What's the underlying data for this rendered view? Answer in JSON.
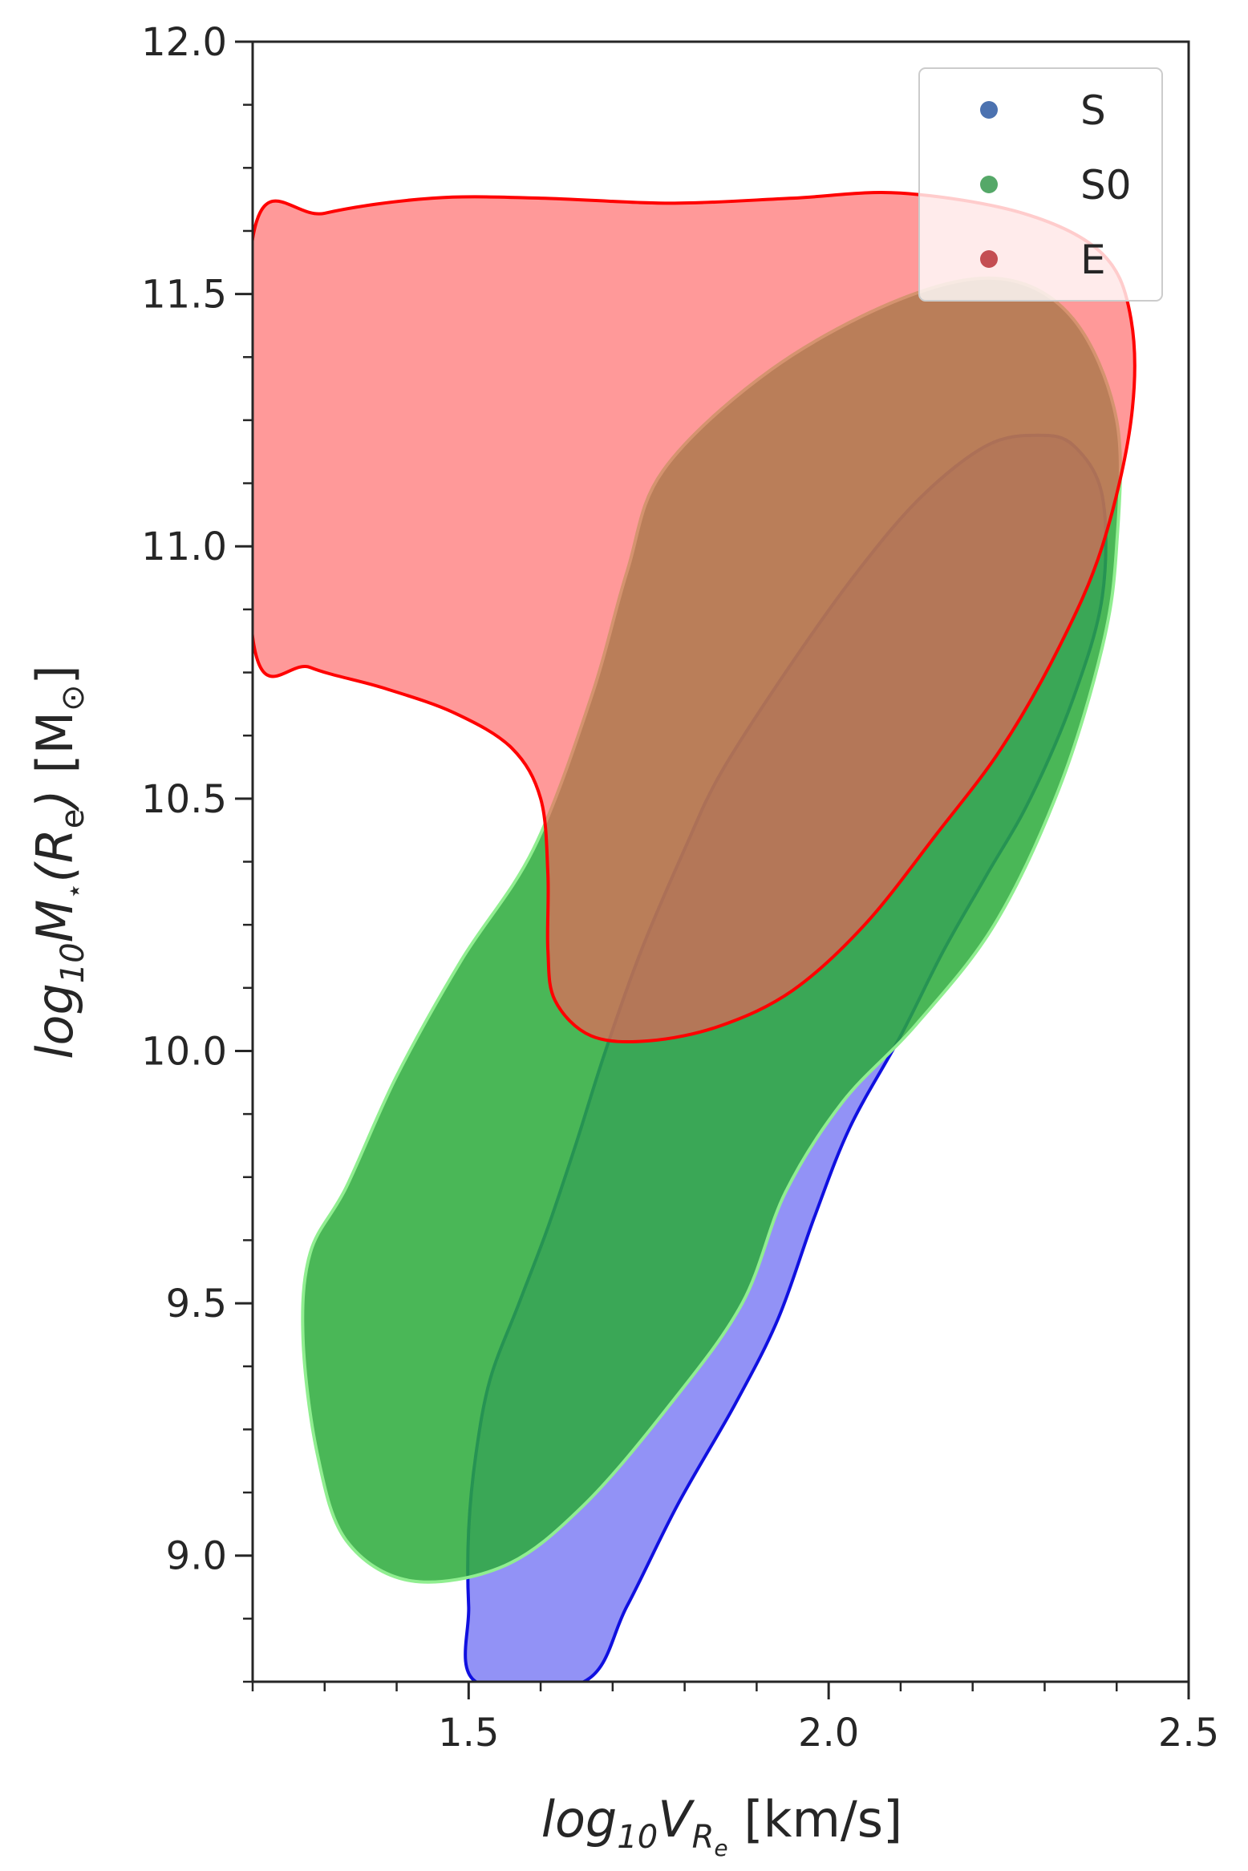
{
  "chart_data": {
    "type": "contour",
    "xlabel": {
      "main": "log",
      "sub": "10",
      "var": "V",
      "varsub": "R",
      "varsubsub": "e",
      "unit": " [km/s]"
    },
    "ylabel": {
      "main": "log",
      "sub": "10",
      "var": "M",
      "star": "⋆",
      "open": "(",
      "inner": "R",
      "innersub": "e",
      "close": ")",
      "unit": " [M",
      "unitsub": "⊙",
      "unitclose": "]"
    },
    "xlim": [
      1.2,
      2.5
    ],
    "ylim": [
      8.75,
      12.0
    ],
    "x_ticks": [
      1.5,
      2.0,
      2.5
    ],
    "x_tick_labels": [
      "1.5",
      "2.0",
      "2.5"
    ],
    "y_ticks": [
      9.0,
      9.5,
      10.0,
      10.5,
      11.0,
      11.5,
      12.0
    ],
    "y_tick_labels": [
      "9.0",
      "9.5",
      "10.0",
      "10.5",
      "11.0",
      "11.5",
      "12.0"
    ],
    "grid": false,
    "legend_position": "top-right",
    "series": [
      {
        "name": "S",
        "marker_color": "#4c72b0",
        "fill": "#7f7ff5",
        "edge": "#1010e0",
        "contour": [
          [
            1.51,
            8.75
          ],
          [
            1.5,
            8.9
          ],
          [
            1.5,
            9.05
          ],
          [
            1.51,
            9.2
          ],
          [
            1.53,
            9.35
          ],
          [
            1.57,
            9.5
          ],
          [
            1.61,
            9.65
          ],
          [
            1.65,
            9.82
          ],
          [
            1.69,
            10.0
          ],
          [
            1.74,
            10.2
          ],
          [
            1.8,
            10.4
          ],
          [
            1.85,
            10.55
          ],
          [
            1.94,
            10.75
          ],
          [
            2.04,
            10.95
          ],
          [
            2.13,
            11.1
          ],
          [
            2.22,
            11.2
          ],
          [
            2.29,
            11.22
          ],
          [
            2.34,
            11.2
          ],
          [
            2.38,
            11.1
          ],
          [
            2.38,
            10.9
          ],
          [
            2.34,
            10.7
          ],
          [
            2.28,
            10.5
          ],
          [
            2.22,
            10.35
          ],
          [
            2.16,
            10.2
          ],
          [
            2.1,
            10.03
          ],
          [
            2.03,
            9.85
          ],
          [
            1.98,
            9.67
          ],
          [
            1.93,
            9.47
          ],
          [
            1.87,
            9.3
          ],
          [
            1.79,
            9.1
          ],
          [
            1.72,
            8.9
          ],
          [
            1.66,
            8.75
          ]
        ]
      },
      {
        "name": "S0",
        "marker_color": "#55a868",
        "fill": "#2aaa3a",
        "edge": "#90ee90",
        "contour": [
          [
            1.27,
            9.43
          ],
          [
            1.29,
            9.2
          ],
          [
            1.33,
            9.03
          ],
          [
            1.42,
            8.95
          ],
          [
            1.55,
            8.98
          ],
          [
            1.66,
            9.1
          ],
          [
            1.78,
            9.3
          ],
          [
            1.88,
            9.5
          ],
          [
            1.94,
            9.72
          ],
          [
            2.02,
            9.9
          ],
          [
            2.12,
            10.05
          ],
          [
            2.23,
            10.25
          ],
          [
            2.32,
            10.52
          ],
          [
            2.38,
            10.8
          ],
          [
            2.4,
            11.0
          ],
          [
            2.4,
            11.25
          ],
          [
            2.34,
            11.45
          ],
          [
            2.24,
            11.53
          ],
          [
            2.1,
            11.49
          ],
          [
            1.92,
            11.35
          ],
          [
            1.77,
            11.15
          ],
          [
            1.72,
            10.95
          ],
          [
            1.67,
            10.7
          ],
          [
            1.59,
            10.4
          ],
          [
            1.49,
            10.18
          ],
          [
            1.4,
            9.95
          ],
          [
            1.33,
            9.73
          ],
          [
            1.28,
            9.6
          ]
        ]
      },
      {
        "name": "E",
        "marker_color": "#c44e52",
        "fill": "#ff5a5a",
        "edge": "#ff0000",
        "contour": [
          [
            1.2,
            11.61
          ],
          [
            1.3,
            11.66
          ],
          [
            1.45,
            11.69
          ],
          [
            1.6,
            11.69
          ],
          [
            1.78,
            11.68
          ],
          [
            1.95,
            11.69
          ],
          [
            2.1,
            11.7
          ],
          [
            2.27,
            11.66
          ],
          [
            2.38,
            11.58
          ],
          [
            2.42,
            11.45
          ],
          [
            2.42,
            11.25
          ],
          [
            2.38,
            11.0
          ],
          [
            2.32,
            10.8
          ],
          [
            2.24,
            10.6
          ],
          [
            2.15,
            10.43
          ],
          [
            2.05,
            10.25
          ],
          [
            1.95,
            10.12
          ],
          [
            1.85,
            10.05
          ],
          [
            1.75,
            10.02
          ],
          [
            1.67,
            10.03
          ],
          [
            1.62,
            10.1
          ],
          [
            1.61,
            10.2
          ],
          [
            1.61,
            10.35
          ],
          [
            1.6,
            10.5
          ],
          [
            1.56,
            10.6
          ],
          [
            1.48,
            10.67
          ],
          [
            1.38,
            10.72
          ],
          [
            1.28,
            10.76
          ],
          [
            1.2,
            10.82
          ]
        ]
      }
    ]
  }
}
